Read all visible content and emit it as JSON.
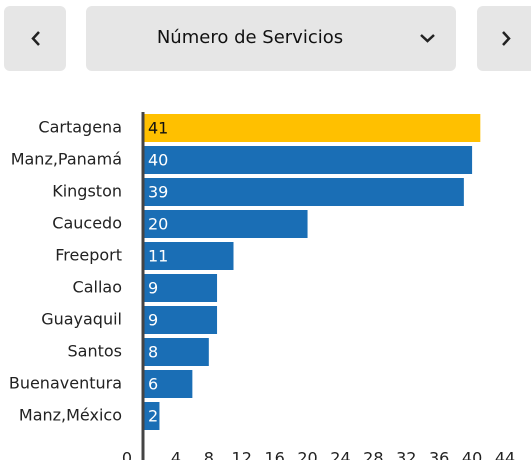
{
  "dropdown": {
    "label": "Número de Servicios"
  },
  "chart_data": {
    "type": "bar",
    "orientation": "horizontal",
    "categories": [
      "Cartagena",
      "Manz,Panamá",
      "Kingston",
      "Caucedo",
      "Freeport",
      "Callao",
      "Guayaquil",
      "Santos",
      "Buenaventura",
      "Manz,México"
    ],
    "values": [
      41,
      40,
      39,
      20,
      11,
      9,
      9,
      8,
      6,
      2
    ],
    "colors": [
      "#ffc000",
      "#1a6eb5",
      "#1a6eb5",
      "#1a6eb5",
      "#1a6eb5",
      "#1a6eb5",
      "#1a6eb5",
      "#1a6eb5",
      "#1a6eb5",
      "#1a6eb5"
    ],
    "xlim": [
      0,
      44
    ],
    "xticks": [
      0,
      4,
      8,
      12,
      16,
      20,
      24,
      28,
      32,
      36,
      40,
      44
    ]
  }
}
